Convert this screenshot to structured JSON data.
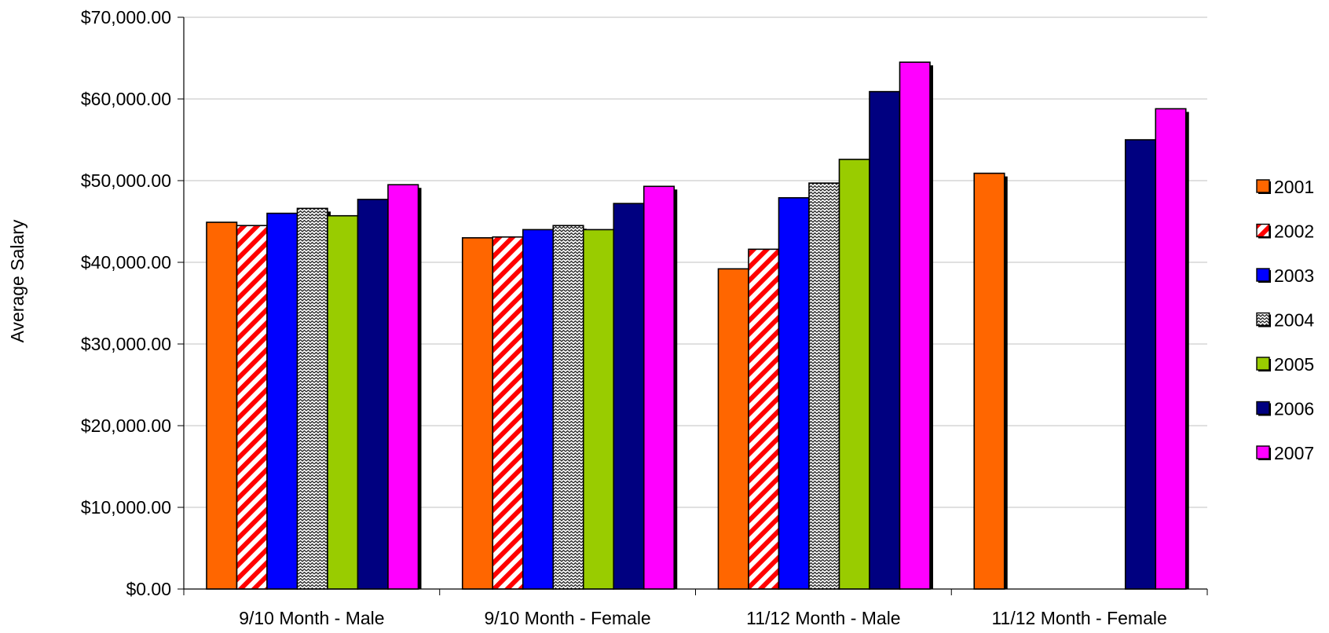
{
  "chart_data": {
    "type": "bar",
    "title": "",
    "xlabel": "",
    "ylabel": "Average Salary",
    "ylim": [
      0,
      70000
    ],
    "yticks": [
      0,
      10000,
      20000,
      30000,
      40000,
      50000,
      60000,
      70000
    ],
    "ytick_labels": [
      "$0.00",
      "$10,000.00",
      "$20,000.00",
      "$30,000.00",
      "$40,000.00",
      "$50,000.00",
      "$60,000.00",
      "$70,000.00"
    ],
    "grid": true,
    "legend_position": "right",
    "categories": [
      "9/10 Month - Male",
      "9/10 Month - Female",
      "11/12 Month - Male",
      "11/12 Month - Female"
    ],
    "series": [
      {
        "name": "2001",
        "color": "#ff6600",
        "pattern": "solid",
        "values": [
          44900,
          43000,
          39200,
          50900
        ]
      },
      {
        "name": "2002",
        "color": "#ff0000",
        "pattern": "diagonal-stripes",
        "values": [
          44500,
          43100,
          41600,
          null
        ]
      },
      {
        "name": "2003",
        "color": "#0000ff",
        "pattern": "solid",
        "values": [
          46000,
          44000,
          47900,
          null
        ]
      },
      {
        "name": "2004",
        "color": "#333333",
        "pattern": "zigzag",
        "values": [
          46600,
          44500,
          49700,
          null
        ]
      },
      {
        "name": "2005",
        "color": "#99cc00",
        "pattern": "solid",
        "values": [
          45700,
          44000,
          52600,
          null
        ]
      },
      {
        "name": "2006",
        "color": "#000080",
        "pattern": "solid",
        "values": [
          47700,
          47200,
          60900,
          55000
        ]
      },
      {
        "name": "2007",
        "color": "#ff00ff",
        "pattern": "solid",
        "values": [
          49500,
          49300,
          64500,
          58800
        ]
      }
    ]
  }
}
